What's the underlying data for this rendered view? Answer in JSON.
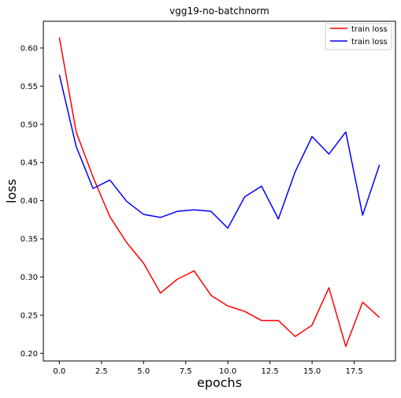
{
  "chart_data": {
    "type": "line",
    "title": "vgg19-no-batchnorm",
    "xlabel": "epochs",
    "ylabel": "loss",
    "xlim": [
      -0.95,
      19.95
    ],
    "ylim": [
      0.19,
      0.635
    ],
    "xticks": [
      {
        "value": 0.0,
        "label": "0.0"
      },
      {
        "value": 2.5,
        "label": "2.5"
      },
      {
        "value": 5.0,
        "label": "5.0"
      },
      {
        "value": 7.5,
        "label": "7.5"
      },
      {
        "value": 10.0,
        "label": "10.0"
      },
      {
        "value": 12.5,
        "label": "12.5"
      },
      {
        "value": 15.0,
        "label": "15.0"
      },
      {
        "value": 17.5,
        "label": "17.5"
      }
    ],
    "yticks": [
      {
        "value": 0.2,
        "label": "0.20"
      },
      {
        "value": 0.25,
        "label": "0.25"
      },
      {
        "value": 0.3,
        "label": "0.30"
      },
      {
        "value": 0.35,
        "label": "0.35"
      },
      {
        "value": 0.4,
        "label": "0.40"
      },
      {
        "value": 0.45,
        "label": "0.45"
      },
      {
        "value": 0.5,
        "label": "0.50"
      },
      {
        "value": 0.55,
        "label": "0.55"
      },
      {
        "value": 0.6,
        "label": "0.60"
      }
    ],
    "grid": false,
    "legend_position": "upper right",
    "x": [
      0,
      1,
      2,
      3,
      4,
      5,
      6,
      7,
      8,
      9,
      10,
      11,
      12,
      13,
      14,
      15,
      16,
      17,
      18,
      19
    ],
    "series": [
      {
        "name": "train loss",
        "color": "#ff0000",
        "values": [
          0.614,
          0.49,
          0.431,
          0.379,
          0.345,
          0.318,
          0.279,
          0.297,
          0.308,
          0.276,
          0.262,
          0.255,
          0.243,
          0.243,
          0.222,
          0.237,
          0.286,
          0.209,
          0.267,
          0.247
        ]
      },
      {
        "name": "train loss",
        "color": "#0000ff",
        "values": [
          0.565,
          0.471,
          0.416,
          0.427,
          0.399,
          0.382,
          0.378,
          0.386,
          0.388,
          0.386,
          0.364,
          0.405,
          0.419,
          0.376,
          0.438,
          0.484,
          0.461,
          0.49,
          0.381,
          0.447
        ]
      }
    ]
  }
}
